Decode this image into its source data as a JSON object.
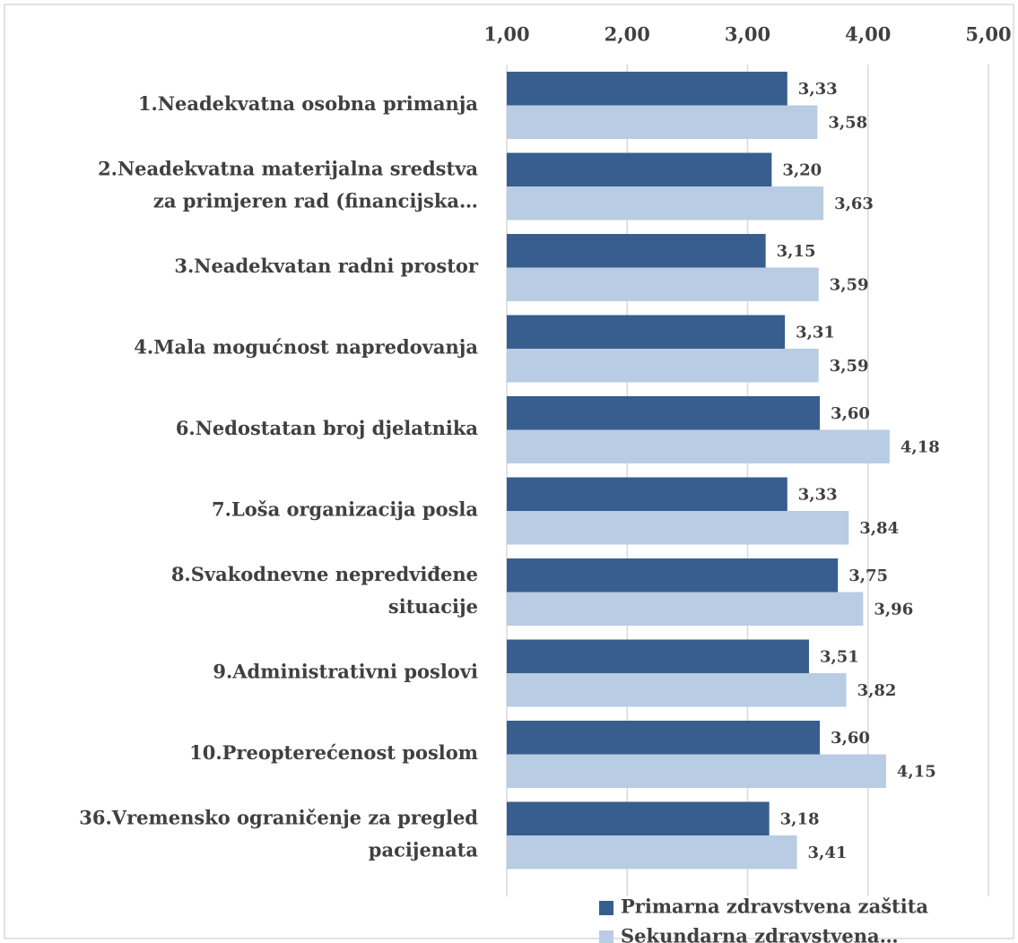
{
  "chart_data": {
    "type": "barh",
    "categories": [
      [
        "1.Neadekvatna osobna primanja"
      ],
      [
        "2.Neadekvatna materijalna sredstva",
        "za primjeren rad (financijska…"
      ],
      [
        "3.Neadekvatan radni prostor"
      ],
      [
        "4.Mala mogućnost napredovanja"
      ],
      [
        "6.Nedostatan broj djelatnika"
      ],
      [
        "7.Loša organizacija posla"
      ],
      [
        "8.Svakodnevne nepredviđene",
        "situacije"
      ],
      [
        "9.Administrativni poslovi"
      ],
      [
        "10.Preopterećenost poslom"
      ],
      [
        "36.Vremensko ograničenje za pregled",
        "pacijenata"
      ]
    ],
    "series": [
      {
        "name": "Primarna zdravstvena zaštita",
        "color": "#375e8f",
        "values": [
          3.33,
          3.2,
          3.15,
          3.31,
          3.6,
          3.33,
          3.75,
          3.51,
          3.6,
          3.18
        ],
        "value_labels": [
          "3,33",
          "3,20",
          "3,15",
          "3,31",
          "3,60",
          "3,33",
          "3,75",
          "3,51",
          "3,60",
          "3,18"
        ]
      },
      {
        "name": "Sekundarna zdravstvena…",
        "color": "#b8cce4",
        "values": [
          3.58,
          3.63,
          3.59,
          3.59,
          4.18,
          3.84,
          3.96,
          3.82,
          4.15,
          3.41
        ],
        "value_labels": [
          "3,58",
          "3,63",
          "3,59",
          "3,59",
          "4,18",
          "3,84",
          "3,96",
          "3,82",
          "4,15",
          "3,41"
        ]
      }
    ],
    "xlim": [
      1,
      5
    ],
    "xticks": [
      {
        "value": 1,
        "label": "1,00"
      },
      {
        "value": 2,
        "label": "2,00"
      },
      {
        "value": 3,
        "label": "3,00"
      },
      {
        "value": 4,
        "label": "4,00"
      },
      {
        "value": 5,
        "label": "5,00"
      }
    ],
    "grid": true,
    "legend": "bottom-right"
  }
}
